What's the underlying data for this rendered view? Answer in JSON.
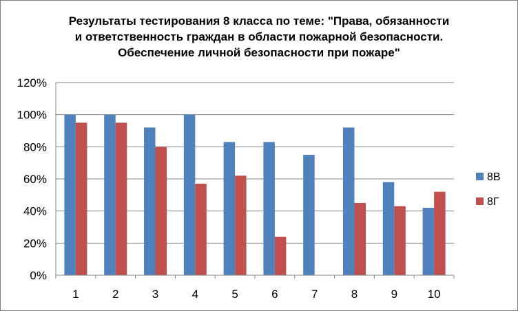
{
  "chart_data": {
    "type": "bar",
    "title_lines": [
      "Результаты тестирования 8 класса по теме: \"Права, обязанности",
      "и ответственность граждан в области пожарной безопасности.",
      "Обеспечение личной безопасности при пожаре\""
    ],
    "categories": [
      "1",
      "2",
      "3",
      "4",
      "5",
      "6",
      "7",
      "8",
      "9",
      "10"
    ],
    "series": [
      {
        "name": "8В",
        "color": "#4f81bd",
        "values": [
          100,
          100,
          92,
          100,
          83,
          83,
          75,
          92,
          58,
          42
        ]
      },
      {
        "name": "8Г",
        "color": "#c0504d",
        "values": [
          95,
          95,
          80,
          57,
          62,
          24,
          0,
          45,
          43,
          52
        ]
      }
    ],
    "y_ticks": [
      "0%",
      "20%",
      "40%",
      "60%",
      "80%",
      "100%",
      "120%"
    ],
    "ylim": [
      0,
      120
    ],
    "y_unit": "%",
    "grid": true,
    "legend_position": "right"
  }
}
